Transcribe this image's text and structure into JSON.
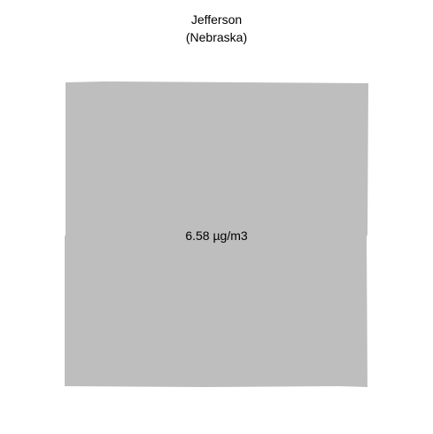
{
  "map": {
    "title_line1": "Jefferson",
    "title_line2": "(Nebraska)",
    "county": {
      "value_label": "6.58 µg/m3",
      "value": 6.58,
      "unit": "µg/m3",
      "fill_color": "#bebebe"
    },
    "background_color": "#ffffff"
  }
}
